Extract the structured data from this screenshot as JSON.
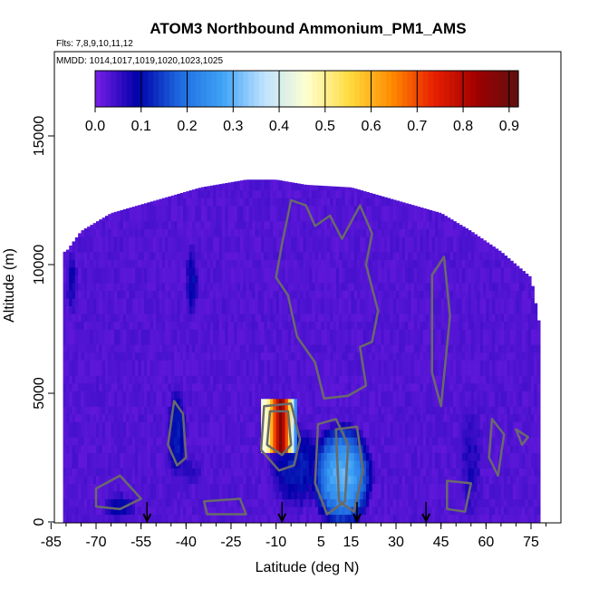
{
  "chart_data": {
    "type": "heatmap",
    "title": "ATOM3 Northbound Ammonium_PM1_AMS",
    "notes": [
      "Flts: 7,8,9,10,11,12",
      "MMDD: 1014,1017,1019,1020,1023,1025"
    ],
    "xlabel": "Latitude (deg N)",
    "ylabel": "Altitude (m)",
    "xlim": [
      -85,
      85
    ],
    "ylim": [
      0,
      17500
    ],
    "x_ticks": [
      -85,
      -70,
      -55,
      -40,
      -25,
      -10,
      5,
      15,
      30,
      45,
      60,
      75
    ],
    "y_ticks": [
      0,
      5000,
      10000,
      15000
    ],
    "colorbar": {
      "min": 0.0,
      "max": 0.92,
      "ticks": [
        0.0,
        0.1,
        0.2,
        0.3,
        0.4,
        0.5,
        0.6,
        0.7,
        0.8,
        0.9
      ],
      "tick_labels": [
        "0.0",
        "0.1",
        "0.2",
        "0.3",
        "0.4",
        "0.5",
        "0.6",
        "0.7",
        "0.8",
        "0.9"
      ],
      "colors": [
        "#7a1ee8",
        "#0000a8",
        "#1e6ae0",
        "#3ea2f5",
        "#bfe2ff",
        "#ffffd0",
        "#ffdc40",
        "#ff8c00",
        "#e82000",
        "#a00000",
        "#601010"
      ]
    },
    "coverage_top_profile": [
      {
        "lat": -80,
        "alt": 10500
      },
      {
        "lat": -75,
        "alt": 11300
      },
      {
        "lat": -65,
        "alt": 12000
      },
      {
        "lat": -50,
        "alt": 12500
      },
      {
        "lat": -35,
        "alt": 13000
      },
      {
        "lat": -20,
        "alt": 13300
      },
      {
        "lat": -10,
        "alt": 13300
      },
      {
        "lat": 0,
        "alt": 13100
      },
      {
        "lat": 15,
        "alt": 13000
      },
      {
        "lat": 30,
        "alt": 12500
      },
      {
        "lat": 45,
        "alt": 12000
      },
      {
        "lat": 55,
        "alt": 11300
      },
      {
        "lat": 65,
        "alt": 10500
      },
      {
        "lat": 75,
        "alt": 9500
      },
      {
        "lat": 78,
        "alt": 7500
      }
    ],
    "coverage_lat_range": [
      -81,
      78
    ],
    "background_value": 0.02,
    "features": [
      {
        "lat": -43,
        "alt": 3500,
        "lat_hw": 3,
        "alt_hw": 1800,
        "value": 0.12
      },
      {
        "lat": -38,
        "alt": 9300,
        "lat_hw": 2,
        "alt_hw": 1400,
        "value": 0.1
      },
      {
        "lat": -78,
        "alt": 9300,
        "lat_hw": 2,
        "alt_hw": 1200,
        "value": 0.08
      },
      {
        "lat": 12,
        "alt": 1800,
        "lat_hw": 9,
        "alt_hw": 1800,
        "value": 0.3
      },
      {
        "lat": -3,
        "alt": 2200,
        "lat_hw": 9,
        "alt_hw": 1600,
        "value": 0.12
      },
      {
        "lat": -40,
        "alt": 2000,
        "lat_hw": 6,
        "alt_hw": 700,
        "value": 0.06
      },
      {
        "lat": -62,
        "alt": 600,
        "lat_hw": 5,
        "alt_hw": 500,
        "value": 0.1
      },
      {
        "lat": 55,
        "alt": 2500,
        "lat_hw": 4,
        "alt_hw": 2500,
        "value": 0.07
      }
    ],
    "hot_spot": {
      "lat_range": [
        -15,
        -3
      ],
      "alt_range": [
        2600,
        4800
      ],
      "cells": [
        {
          "lat": -14,
          "value": 0.45
        },
        {
          "lat": -13,
          "value": 0.5
        },
        {
          "lat": -12,
          "value": 0.6
        },
        {
          "lat": -11,
          "value": 0.7
        },
        {
          "lat": -10,
          "value": 0.78
        },
        {
          "lat": -9,
          "value": 0.88
        },
        {
          "lat": -8,
          "value": 0.8
        },
        {
          "lat": -7,
          "value": 0.7
        },
        {
          "lat": -6,
          "value": 0.55
        },
        {
          "lat": -5,
          "value": 0.4
        },
        {
          "lat": -4,
          "value": 0.25
        }
      ]
    },
    "markers": [
      {
        "lat": -53,
        "alt": 0
      },
      {
        "lat": -8,
        "alt": 0
      },
      {
        "lat": 17,
        "alt": 0
      },
      {
        "lat": 40,
        "alt": 0
      }
    ]
  }
}
